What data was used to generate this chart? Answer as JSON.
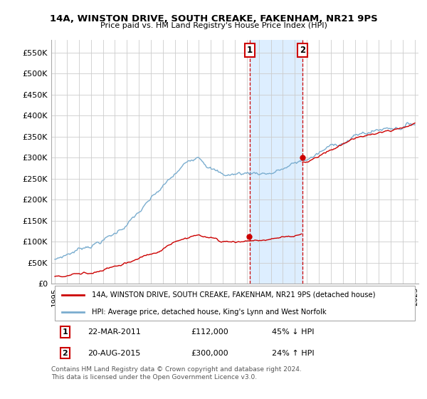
{
  "title": "14A, WINSTON DRIVE, SOUTH CREAKE, FAKENHAM, NR21 9PS",
  "subtitle": "Price paid vs. HM Land Registry's House Price Index (HPI)",
  "x_start_year": 1995,
  "x_end_year": 2025,
  "ylim": [
    0,
    580000
  ],
  "yticks": [
    0,
    50000,
    100000,
    150000,
    200000,
    250000,
    300000,
    350000,
    400000,
    450000,
    500000,
    550000
  ],
  "ytick_labels": [
    "£0",
    "£50K",
    "£100K",
    "£150K",
    "£200K",
    "£250K",
    "£300K",
    "£350K",
    "£400K",
    "£450K",
    "£500K",
    "£550K"
  ],
  "red_line_color": "#cc0000",
  "blue_line_color": "#7aadcf",
  "transaction1_year": 2011.22,
  "transaction1_label": "1",
  "transaction1_price": 112000,
  "transaction1_date": "22-MAR-2011",
  "transaction1_hpi": "45% ↓ HPI",
  "transaction2_year": 2015.64,
  "transaction2_label": "2",
  "transaction2_price": 300000,
  "transaction2_date": "20-AUG-2015",
  "transaction2_hpi": "24% ↑ HPI",
  "legend_red": "14A, WINSTON DRIVE, SOUTH CREAKE, FAKENHAM, NR21 9PS (detached house)",
  "legend_blue": "HPI: Average price, detached house, King's Lynn and West Norfolk",
  "footnote": "Contains HM Land Registry data © Crown copyright and database right 2024.\nThis data is licensed under the Open Government Licence v3.0.",
  "background_color": "#ffffff",
  "highlight_color": "#ddeeff",
  "grid_color": "#cccccc"
}
